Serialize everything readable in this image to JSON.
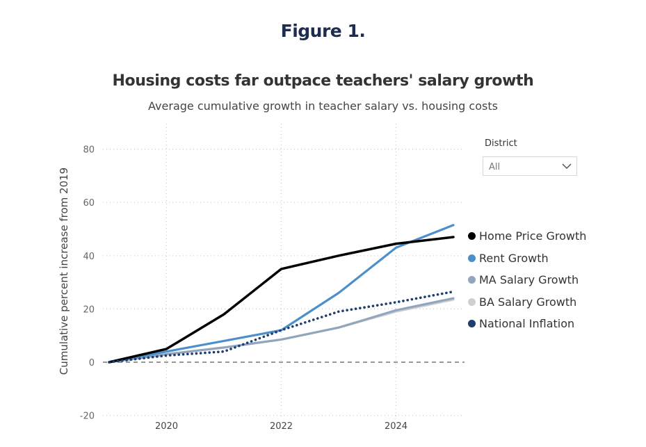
{
  "figure_title": "Figure 1.",
  "filter": {
    "label": "District",
    "value": "All"
  },
  "chart_data": {
    "type": "line",
    "title": "Housing costs far outpace teachers' salary growth",
    "subtitle": "Average cumulative growth in teacher salary vs. housing costs",
    "xlabel": "",
    "ylabel": "Cumulative percent increase from 2019",
    "xlim": [
      2019,
      2025
    ],
    "ylim": [
      -20,
      80
    ],
    "x_ticks": [
      2020,
      2022,
      2024
    ],
    "y_ticks": [
      -20,
      0,
      20,
      40,
      60,
      80
    ],
    "x_tick_labels": [
      "2020",
      "2022",
      "2024"
    ],
    "y_tick_labels": [
      "-20",
      "0",
      "20",
      "40",
      "60",
      "80"
    ],
    "grid": true,
    "zero_line": "dashed",
    "legend_position": "right",
    "x": [
      2019,
      2020,
      2021,
      2022,
      2023,
      2024,
      2025
    ],
    "series": [
      {
        "name": "Home Price Growth",
        "color": "#000000",
        "style": "solid",
        "values": [
          0,
          5,
          18,
          35,
          40,
          44.5,
          47
        ]
      },
      {
        "name": "Rent Growth",
        "color": "#4d8fcb",
        "style": "solid",
        "values": [
          0,
          4,
          8,
          12,
          26,
          43,
          51.5
        ]
      },
      {
        "name": "MA Salary Growth",
        "color": "#92a5bf",
        "style": "solid",
        "values": [
          0,
          3,
          5.5,
          8.5,
          13,
          19.5,
          24
        ]
      },
      {
        "name": "BA Salary Growth",
        "color": "#cfcfcf",
        "style": "solid",
        "values": [
          0,
          3,
          5.5,
          8.5,
          13,
          19,
          23.5
        ]
      },
      {
        "name": "National Inflation",
        "color": "#1f3d6e",
        "style": "dotted",
        "values": [
          0,
          2.5,
          4,
          12,
          19,
          22.5,
          26.5
        ]
      }
    ]
  }
}
